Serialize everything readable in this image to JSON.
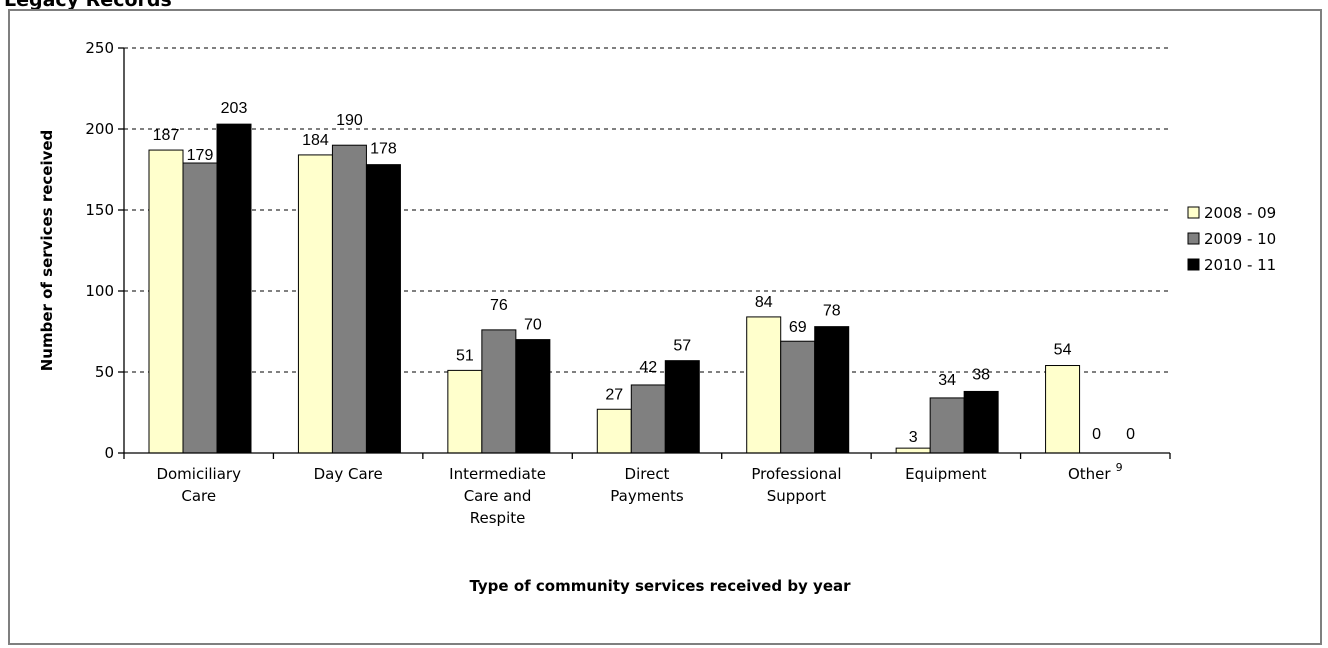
{
  "page": {
    "title": "Legacy Records"
  },
  "chart_data": {
    "type": "bar",
    "title": "",
    "xlabel": "Type of community services received by year",
    "ylabel": "Number of services received",
    "ylim": [
      0,
      250
    ],
    "yticks": [
      0,
      50,
      100,
      150,
      200,
      250
    ],
    "grid": true,
    "legend_position": "right",
    "categories": [
      [
        "Domiciliary",
        "Care"
      ],
      [
        "Day Care"
      ],
      [
        "Intermediate",
        "Care and",
        "Respite"
      ],
      [
        "Direct",
        "Payments"
      ],
      [
        "Professional",
        "Support"
      ],
      [
        "Equipment"
      ],
      [
        "Other"
      ]
    ],
    "footnotes": [
      "",
      "",
      "",
      "",
      "",
      "",
      "9"
    ],
    "series": [
      {
        "name": "2008 - 09",
        "color": "#ffffcc",
        "values": [
          187,
          184,
          51,
          27,
          84,
          3,
          54
        ]
      },
      {
        "name": "2009 - 10",
        "color": "#808080",
        "values": [
          179,
          190,
          76,
          42,
          69,
          34,
          0
        ]
      },
      {
        "name": "2010 - 11",
        "color": "#000000",
        "values": [
          203,
          178,
          70,
          57,
          78,
          38,
          0
        ]
      }
    ]
  }
}
